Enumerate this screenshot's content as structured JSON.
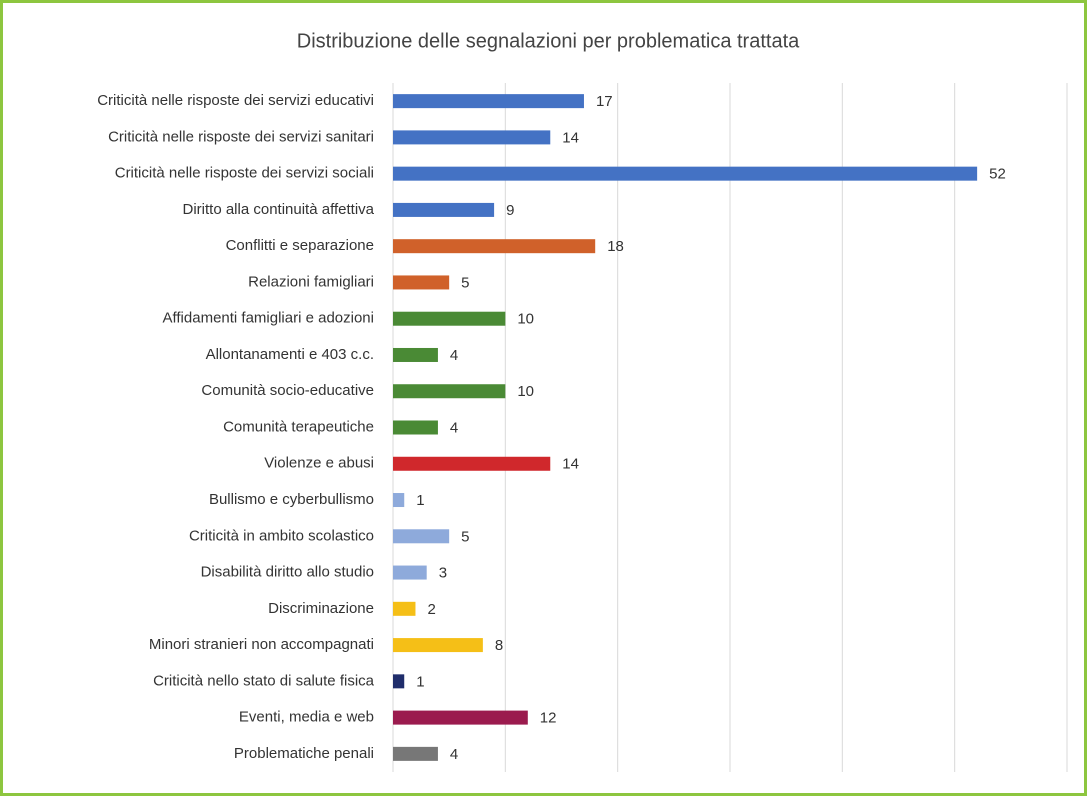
{
  "chart_data": {
    "type": "bar",
    "orientation": "horizontal",
    "title": "Distribuzione delle segnalazioni per problematica trattata",
    "categories": [
      "Criticità nelle risposte dei servizi educativi",
      "Criticità nelle risposte dei servizi sanitari",
      "Criticità nelle risposte dei servizi sociali",
      "Diritto alla continuità affettiva",
      "Conflitti e separazione",
      "Relazioni famigliari",
      "Affidamenti famigliari e adozioni",
      "Allontanamenti e 403 c.c.",
      "Comunità socio-educative",
      "Comunità terapeutiche",
      "Violenze e abusi",
      "Bullismo e cyberbullismo",
      "Criticità in ambito scolastico",
      "Disabilità diritto allo studio",
      "Discriminazione",
      "Minori stranieri non accompagnati",
      "Criticità nello stato di salute fisica",
      "Eventi, media e web",
      "Problematiche penali"
    ],
    "values": [
      17,
      14,
      52,
      9,
      18,
      5,
      10,
      4,
      10,
      4,
      14,
      1,
      5,
      3,
      2,
      8,
      1,
      12,
      4
    ],
    "colors": [
      "#4472c4",
      "#4472c4",
      "#4472c4",
      "#4472c4",
      "#d0612a",
      "#d0612a",
      "#4a8a35",
      "#4a8a35",
      "#4a8a35",
      "#4a8a35",
      "#d0282c",
      "#8eaadb",
      "#8eaadb",
      "#8eaadb",
      "#f5bf17",
      "#f5bf17",
      "#1f2d6b",
      "#9b1b4e",
      "#777777"
    ],
    "xlim": [
      0,
      60
    ],
    "xticks": [
      0,
      10,
      20,
      30,
      40,
      50,
      60
    ],
    "grid": true
  }
}
